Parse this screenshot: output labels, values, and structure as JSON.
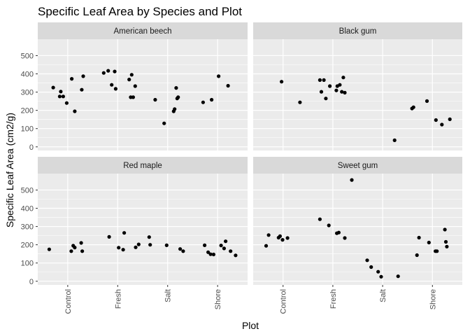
{
  "chart_data": {
    "type": "scatter",
    "facet_layout": "2x2",
    "title": "Specific Leaf Area by Species and Plot",
    "xlabel": "Plot",
    "ylabel": "Specific Leaf Area (cm2/g)",
    "categories": [
      "Control",
      "Fresh",
      "Salt",
      "Shore"
    ],
    "yticks": [
      0,
      100,
      200,
      300,
      400,
      500
    ],
    "ylim": [
      -20,
      590
    ],
    "xlim": [
      0.4,
      4.6
    ],
    "grid": true,
    "x_jitter": true,
    "panels": [
      {
        "name": "American beech",
        "points": [
          [
            0.71,
            325
          ],
          [
            0.84,
            276
          ],
          [
            0.86,
            303
          ],
          [
            0.91,
            276
          ],
          [
            0.98,
            240
          ],
          [
            1.08,
            373
          ],
          [
            1.14,
            195
          ],
          [
            1.28,
            313
          ],
          [
            1.31,
            387
          ],
          [
            1.72,
            405
          ],
          [
            1.81,
            417
          ],
          [
            1.88,
            340
          ],
          [
            1.94,
            413
          ],
          [
            1.96,
            318
          ],
          [
            2.23,
            369
          ],
          [
            2.26,
            272
          ],
          [
            2.28,
            395
          ],
          [
            2.31,
            272
          ],
          [
            2.35,
            333
          ],
          [
            2.75,
            258
          ],
          [
            2.93,
            129
          ],
          [
            3.12,
            195
          ],
          [
            3.14,
            207
          ],
          [
            3.17,
            323
          ],
          [
            3.19,
            265
          ],
          [
            3.21,
            272
          ],
          [
            3.71,
            244
          ],
          [
            3.88,
            258
          ],
          [
            4.02,
            387
          ],
          [
            4.21,
            335
          ]
        ]
      },
      {
        "name": "Black gum",
        "points": [
          [
            0.97,
            357
          ],
          [
            1.34,
            244
          ],
          [
            1.74,
            366
          ],
          [
            1.77,
            302
          ],
          [
            1.82,
            366
          ],
          [
            1.86,
            265
          ],
          [
            1.94,
            333
          ],
          [
            2.07,
            309
          ],
          [
            2.09,
            333
          ],
          [
            2.14,
            340
          ],
          [
            2.18,
            302
          ],
          [
            2.21,
            380
          ],
          [
            2.24,
            297
          ],
          [
            3.24,
            36
          ],
          [
            3.59,
            210
          ],
          [
            3.62,
            217
          ],
          [
            3.89,
            251
          ],
          [
            4.07,
            147
          ],
          [
            4.19,
            122
          ],
          [
            4.35,
            151
          ]
        ]
      },
      {
        "name": "Red maple",
        "points": [
          [
            0.63,
            175
          ],
          [
            1.07,
            165
          ],
          [
            1.11,
            195
          ],
          [
            1.14,
            185
          ],
          [
            1.27,
            210
          ],
          [
            1.29,
            165
          ],
          [
            1.83,
            243
          ],
          [
            2.02,
            184
          ],
          [
            2.11,
            173
          ],
          [
            2.13,
            265
          ],
          [
            2.36,
            186
          ],
          [
            2.42,
            202
          ],
          [
            2.63,
            242
          ],
          [
            2.65,
            200
          ],
          [
            2.98,
            197
          ],
          [
            3.25,
            177
          ],
          [
            3.31,
            165
          ],
          [
            3.74,
            197
          ],
          [
            3.81,
            159
          ],
          [
            3.86,
            148
          ],
          [
            3.92,
            147
          ],
          [
            4.07,
            196
          ],
          [
            4.13,
            180
          ],
          [
            4.16,
            219
          ],
          [
            4.26,
            165
          ],
          [
            4.36,
            142
          ]
        ]
      },
      {
        "name": "Sweet gum",
        "points": [
          [
            0.66,
            194
          ],
          [
            0.71,
            253
          ],
          [
            0.91,
            239
          ],
          [
            0.94,
            247
          ],
          [
            0.99,
            227
          ],
          [
            1.09,
            237
          ],
          [
            1.74,
            340
          ],
          [
            1.92,
            306
          ],
          [
            2.08,
            263
          ],
          [
            2.12,
            267
          ],
          [
            2.24,
            237
          ],
          [
            2.38,
            555
          ],
          [
            2.69,
            115
          ],
          [
            2.77,
            78
          ],
          [
            2.91,
            52
          ],
          [
            2.97,
            25
          ],
          [
            3.31,
            27
          ],
          [
            3.69,
            143
          ],
          [
            3.73,
            239
          ],
          [
            3.93,
            212
          ],
          [
            4.06,
            165
          ],
          [
            4.09,
            165
          ],
          [
            4.25,
            283
          ],
          [
            4.27,
            216
          ],
          [
            4.29,
            190
          ]
        ]
      }
    ]
  }
}
